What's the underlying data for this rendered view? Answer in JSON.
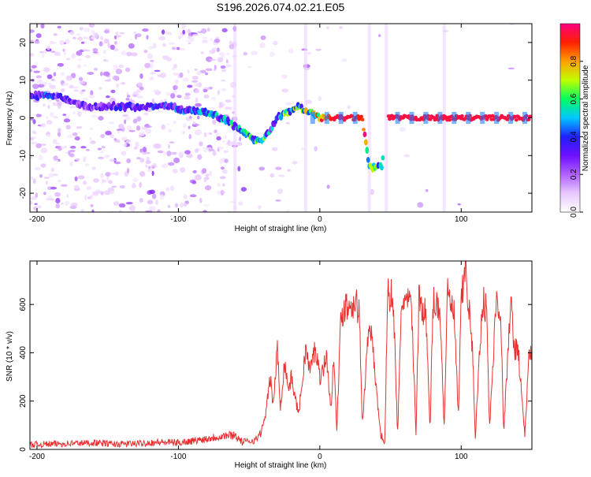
{
  "title": "S196.2026.074.02.21.E05",
  "chart_data": [
    {
      "type": "heatmap",
      "xlabel": "Height of straight line (km)",
      "ylabel": "Frequency (Hz)",
      "xlim": [
        -205,
        150
      ],
      "ylim": [
        -25,
        25
      ],
      "xticks": [
        -200,
        -100,
        0,
        100
      ],
      "yticks": [
        -20,
        -10,
        0,
        10,
        20
      ],
      "colorbar": {
        "label": "Normalized spectral amplitude",
        "ticks": [
          0.0,
          0.2,
          0.4,
          0.6,
          0.8
        ],
        "range": [
          0,
          1
        ],
        "colors": [
          "#ffffff",
          "#e8c8ff",
          "#b060ff",
          "#7010ff",
          "#2020ff",
          "#00c8ff",
          "#00ff60",
          "#c0ff00",
          "#ffa000",
          "#ff2000",
          "#ff0080"
        ]
      },
      "ridge": {
        "x": [
          -195,
          -185,
          -175,
          -165,
          -155,
          -145,
          -135,
          -125,
          -115,
          -105,
          -95,
          -85,
          -75,
          -65,
          -58,
          -52,
          -46,
          -40,
          -35,
          -30,
          -25,
          -20,
          -15,
          -10,
          -5,
          0,
          10,
          20,
          30,
          35,
          40,
          44,
          48,
          60,
          80,
          100,
          120,
          140,
          150
        ],
        "y": [
          6,
          6,
          4,
          3,
          3,
          3,
          3,
          3,
          3,
          3,
          2,
          2,
          1,
          -1,
          -3,
          -4,
          -6,
          -6,
          -3,
          0,
          1,
          2,
          3,
          2,
          1,
          0,
          0,
          0,
          0,
          -13,
          -13,
          -13,
          0,
          0,
          0,
          0,
          0,
          0,
          0
        ],
        "amplitude": [
          0.35,
          0.3,
          0.3,
          0.25,
          0.25,
          0.3,
          0.3,
          0.3,
          0.35,
          0.35,
          0.4,
          0.45,
          0.4,
          0.45,
          0.5,
          0.45,
          0.5,
          0.5,
          0.4,
          0.45,
          0.5,
          0.55,
          0.55,
          0.6,
          0.6,
          0.75,
          0.95,
          0.95,
          0.9,
          0.5,
          0.55,
          0.5,
          0.95,
          0.95,
          0.95,
          0.95,
          0.95,
          0.95,
          0.95
        ]
      },
      "gap": [
        45,
        48
      ]
    },
    {
      "type": "line",
      "xlabel": "Height of straight line (km)",
      "ylabel": "SNR (10 * v/v)",
      "xlim": [
        -205,
        150
      ],
      "ylim": [
        0,
        780
      ],
      "xticks": [
        -200,
        -100,
        0,
        100
      ],
      "yticks": [
        0,
        200,
        400,
        600
      ],
      "color": "#e83030",
      "series": [
        {
          "name": "SNR",
          "x": [
            -205,
            -190,
            -175,
            -160,
            -145,
            -130,
            -115,
            -100,
            -90,
            -80,
            -70,
            -60,
            -55,
            -45,
            -40,
            -38,
            -35,
            -33,
            -30,
            -28,
            -25,
            -22,
            -20,
            -17,
            -15,
            -12,
            -10,
            -7,
            -5,
            -3,
            0,
            3,
            5,
            8,
            10,
            12,
            15,
            18,
            20,
            25,
            28,
            30,
            35,
            40,
            43,
            46,
            48,
            52,
            55,
            58,
            60,
            65,
            68,
            70,
            75,
            78,
            80,
            85,
            88,
            90,
            95,
            98,
            100,
            103,
            105,
            108,
            110,
            115,
            118,
            120,
            125,
            128,
            130,
            135,
            138,
            140,
            145,
            148,
            150
          ],
          "y": [
            20,
            22,
            25,
            28,
            22,
            24,
            30,
            28,
            35,
            45,
            55,
            60,
            30,
            40,
            90,
            160,
            300,
            180,
            420,
            170,
            360,
            250,
            300,
            200,
            150,
            300,
            420,
            320,
            380,
            420,
            300,
            350,
            380,
            150,
            420,
            80,
            550,
            600,
            590,
            620,
            560,
            90,
            560,
            250,
            60,
            30,
            650,
            620,
            60,
            620,
            620,
            580,
            60,
            620,
            560,
            70,
            610,
            590,
            80,
            640,
            560,
            130,
            600,
            760,
            620,
            400,
            60,
            620,
            580,
            80,
            640,
            560,
            70,
            600,
            410,
            430,
            60,
            390,
            400
          ]
        }
      ]
    }
  ]
}
